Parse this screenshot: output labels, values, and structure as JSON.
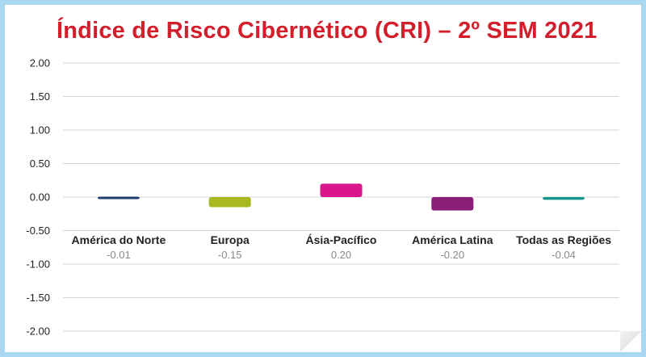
{
  "chart_data": {
    "type": "bar",
    "title": "Índice de Risco Cibernético (CRI) – 2º SEM 2021",
    "categories": [
      "América do Norte",
      "Europa",
      "Ásia-Pacífico",
      "América Latina",
      "Todas as Regiões"
    ],
    "values": [
      -0.01,
      -0.15,
      0.2,
      -0.2,
      -0.04
    ],
    "value_labels": [
      "-0.01",
      "-0.15",
      "0.20",
      "-0.20",
      "-0.04"
    ],
    "colors": [
      "#1f3a6e",
      "#a8b820",
      "#d9168a",
      "#8a1f7a",
      "#12968a"
    ],
    "ylim": [
      -2.0,
      2.0
    ],
    "yticks": [
      "2.00",
      "1.50",
      "1.00",
      "0.50",
      "0.00",
      "-0.50",
      "-1.00",
      "-1.50",
      "-2.00"
    ],
    "grid": true,
    "xlabel": "",
    "ylabel": ""
  }
}
